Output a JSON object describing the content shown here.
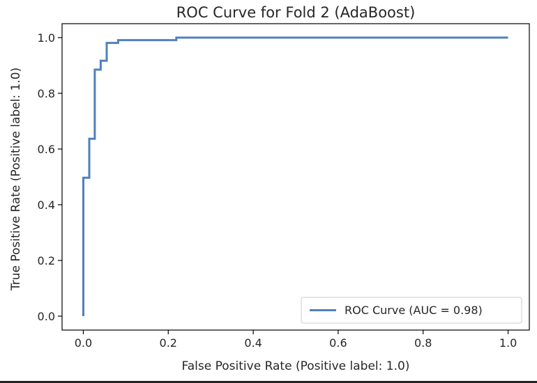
{
  "chart_data": {
    "type": "line",
    "title": "ROC Curve for Fold 2 (AdaBoost)",
    "xlabel": "False Positive Rate (Positive label: 1.0)",
    "ylabel": "True Positive Rate (Positive label: 1.0)",
    "xlim": [
      -0.05,
      1.05
    ],
    "ylim": [
      -0.05,
      1.05
    ],
    "xticks": [
      "0.0",
      "0.2",
      "0.4",
      "0.6",
      "0.8",
      "1.0"
    ],
    "yticks": [
      "0.0",
      "0.2",
      "0.4",
      "0.6",
      "0.8",
      "1.0"
    ],
    "grid": false,
    "legend_position": "lower-right",
    "series": [
      {
        "name": "ROC Curve (AUC = 0.98)",
        "color": "#4f81bd",
        "x": [
          0.0,
          0.0,
          0.014,
          0.014,
          0.027,
          0.027,
          0.041,
          0.041,
          0.055,
          0.055,
          0.082,
          0.082,
          0.219,
          0.219,
          1.0
        ],
        "y": [
          0.0,
          0.497,
          0.497,
          0.637,
          0.637,
          0.885,
          0.885,
          0.917,
          0.917,
          0.981,
          0.981,
          0.991,
          0.991,
          1.0,
          1.0
        ]
      }
    ]
  }
}
